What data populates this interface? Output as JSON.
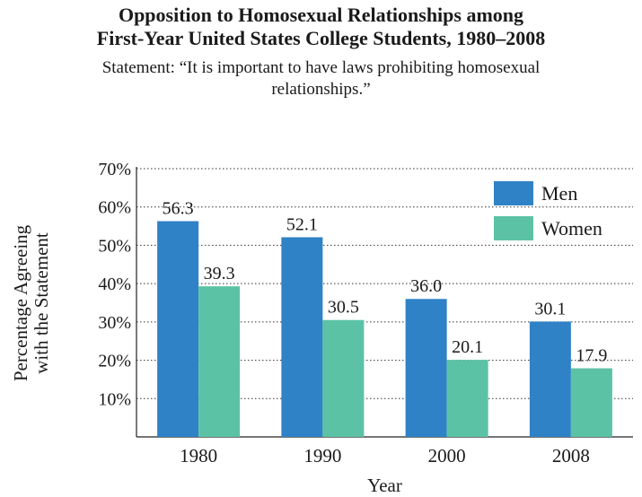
{
  "chart_data": {
    "type": "bar",
    "title": "Opposition to Homosexual Relationships among First-Year United States College Students, 1980–2008",
    "subtitle": "Statement: “It is important to have laws prohibiting homosexual relationships.”",
    "xlabel": "Year",
    "ylabel": "Percentage Agreeing with the Statement",
    "ylabel_lines": [
      "Percentage Agreeing",
      "with the Statement"
    ],
    "categories": [
      "1980",
      "1990",
      "2000",
      "2008"
    ],
    "series": [
      {
        "name": "Men",
        "color": "#2f82c6",
        "values": [
          56.3,
          52.1,
          36.0,
          30.1
        ],
        "labels": [
          "56.3",
          "52.1",
          "36.0",
          "30.1"
        ]
      },
      {
        "name": "Women",
        "color": "#5cc2a5",
        "values": [
          39.3,
          30.5,
          20.1,
          17.9
        ],
        "labels": [
          "39.3",
          "30.5",
          "20.1",
          "17.9"
        ]
      }
    ],
    "ylim": [
      0,
      70
    ],
    "yticks": [
      10,
      20,
      30,
      40,
      50,
      60,
      70
    ],
    "ytick_labels": [
      "10%",
      "20%",
      "30%",
      "40%",
      "50%",
      "60%",
      "70%"
    ],
    "grid": "horizontal dotted",
    "legend_position": "top-right"
  }
}
